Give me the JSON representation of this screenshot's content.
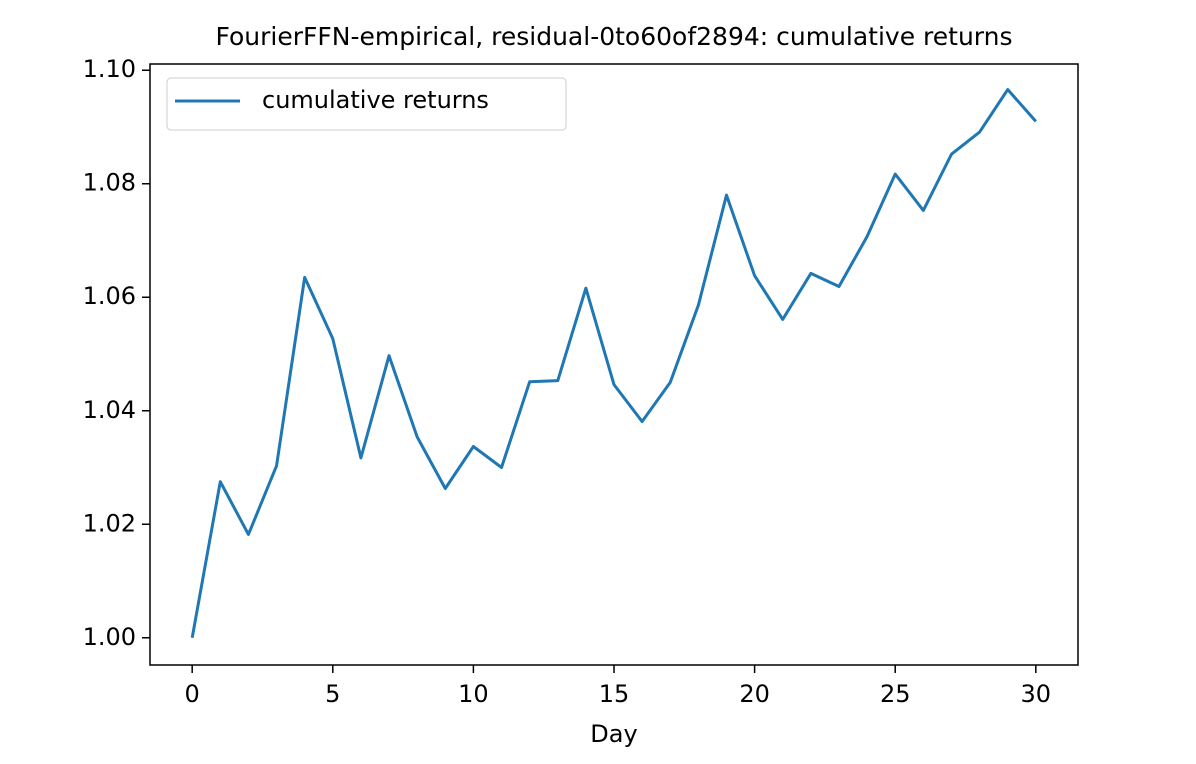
{
  "chart_data": {
    "type": "line",
    "title": "FourierFFN-empirical, residual-0to60of2894: cumulative returns",
    "x_label": "Day",
    "x": [
      0,
      1,
      2,
      3,
      4,
      5,
      6,
      7,
      8,
      9,
      10,
      11,
      12,
      13,
      14,
      15,
      16,
      17,
      18,
      19,
      20,
      21,
      22,
      23,
      24,
      25,
      26,
      27,
      28,
      29,
      30
    ],
    "series": [
      {
        "name": "cumulative returns",
        "color": "#1f77b4",
        "values": [
          1.0,
          1.0275,
          1.0182,
          1.0303,
          1.0635,
          1.0527,
          1.0317,
          1.0497,
          1.0354,
          1.0263,
          1.0337,
          1.03,
          1.0451,
          1.0453,
          1.0616,
          1.0446,
          1.0381,
          1.045,
          1.0586,
          1.078,
          1.0638,
          1.0561,
          1.0642,
          1.0619,
          1.0707,
          1.0817,
          1.0753,
          1.0852,
          1.0891,
          1.0966,
          1.091
        ]
      }
    ],
    "xlim": [
      -1.5,
      31.5
    ],
    "xticks": [
      0,
      5,
      10,
      15,
      20,
      25,
      30
    ],
    "ylim": [
      0.9952,
      1.1011
    ],
    "yticks": [
      {
        "value": 1.0,
        "label": "1.00"
      },
      1.02,
      1.04,
      1.06,
      1.08,
      {
        "value": 1.1,
        "label": "1.10"
      }
    ],
    "legend": "upper left",
    "grid": false
  }
}
